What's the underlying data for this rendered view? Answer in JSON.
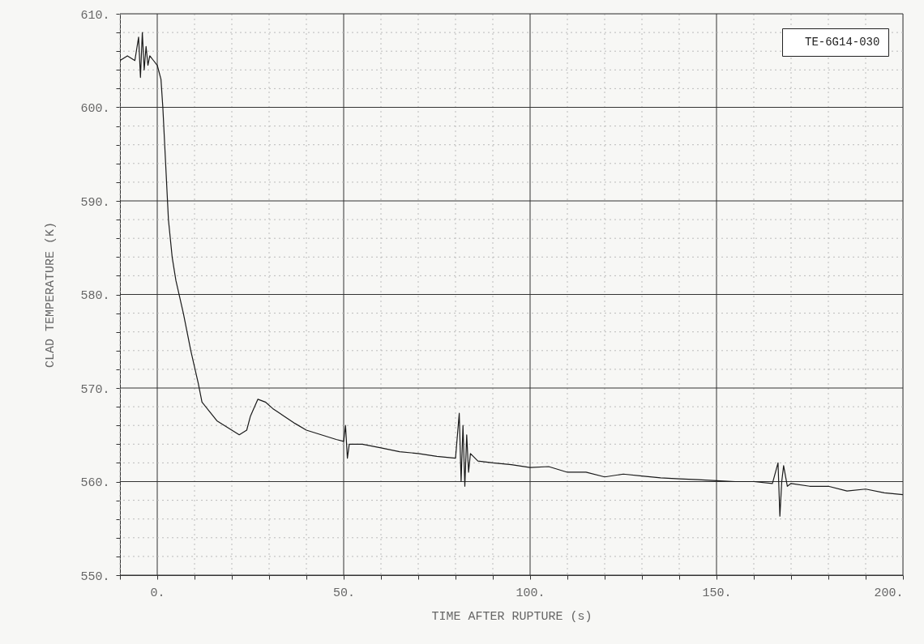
{
  "chart_data": {
    "type": "line",
    "xlabel": "TIME AFTER RUPTURE (s)",
    "ylabel": "CLAD TEMPERATURE (K)",
    "xlim": [
      -10,
      200
    ],
    "ylim": [
      550,
      610
    ],
    "xticks": [
      {
        "value": -10,
        "label": null
      },
      {
        "value": 0,
        "label": "0."
      },
      {
        "value": 10,
        "label": null
      },
      {
        "value": 20,
        "label": null
      },
      {
        "value": 30,
        "label": null
      },
      {
        "value": 40,
        "label": null
      },
      {
        "value": 50,
        "label": "50."
      },
      {
        "value": 60,
        "label": null
      },
      {
        "value": 70,
        "label": null
      },
      {
        "value": 80,
        "label": null
      },
      {
        "value": 90,
        "label": null
      },
      {
        "value": 100,
        "label": "100."
      },
      {
        "value": 110,
        "label": null
      },
      {
        "value": 120,
        "label": null
      },
      {
        "value": 130,
        "label": null
      },
      {
        "value": 140,
        "label": null
      },
      {
        "value": 150,
        "label": "150."
      },
      {
        "value": 160,
        "label": null
      },
      {
        "value": 170,
        "label": null
      },
      {
        "value": 180,
        "label": null
      },
      {
        "value": 190,
        "label": null
      },
      {
        "value": 200,
        "label": "200."
      }
    ],
    "yticks": [
      {
        "value": 550,
        "label": "550."
      },
      {
        "value": 552,
        "label": null
      },
      {
        "value": 554,
        "label": null
      },
      {
        "value": 556,
        "label": null
      },
      {
        "value": 558,
        "label": null
      },
      {
        "value": 560,
        "label": "560."
      },
      {
        "value": 562,
        "label": null
      },
      {
        "value": 564,
        "label": null
      },
      {
        "value": 566,
        "label": null
      },
      {
        "value": 568,
        "label": null
      },
      {
        "value": 570,
        "label": "570."
      },
      {
        "value": 572,
        "label": null
      },
      {
        "value": 574,
        "label": null
      },
      {
        "value": 576,
        "label": null
      },
      {
        "value": 578,
        "label": null
      },
      {
        "value": 580,
        "label": "580."
      },
      {
        "value": 582,
        "label": null
      },
      {
        "value": 584,
        "label": null
      },
      {
        "value": 586,
        "label": null
      },
      {
        "value": 588,
        "label": null
      },
      {
        "value": 590,
        "label": "590."
      },
      {
        "value": 592,
        "label": null
      },
      {
        "value": 594,
        "label": null
      },
      {
        "value": 596,
        "label": null
      },
      {
        "value": 598,
        "label": null
      },
      {
        "value": 600,
        "label": "600."
      },
      {
        "value": 602,
        "label": null
      },
      {
        "value": 604,
        "label": null
      },
      {
        "value": 606,
        "label": null
      },
      {
        "value": 608,
        "label": null
      },
      {
        "value": 610,
        "label": "610."
      }
    ],
    "grid": true,
    "legend": "top right",
    "marker": "none",
    "line_style": "solid",
    "series": [
      {
        "name": "TE-6G14-030",
        "color": "#1a1a1a",
        "x": [
          -10,
          -8,
          -6,
          -5,
          -4.5,
          -4,
          -3.5,
          -3,
          -2.5,
          -2,
          -1,
          0,
          1,
          1.5,
          2,
          3,
          4,
          5,
          7,
          9,
          11,
          12,
          14,
          16,
          18,
          20,
          22,
          24,
          25,
          27,
          29,
          31,
          34,
          37,
          40,
          44,
          48,
          50,
          50.5,
          51,
          51.5,
          55,
          60,
          65,
          70,
          75,
          80,
          81,
          81.5,
          82,
          82.5,
          83,
          83.5,
          84,
          86,
          90,
          95,
          100,
          105,
          110,
          115,
          120,
          125,
          130,
          135,
          140,
          145,
          150,
          155,
          160,
          165,
          166.5,
          167,
          167.5,
          168,
          169,
          170,
          175,
          180,
          185,
          190,
          195,
          200
        ],
        "values": [
          605,
          605.5,
          605,
          607.5,
          603.2,
          608,
          604,
          606.5,
          604.5,
          605.5,
          605,
          604.5,
          603,
          600,
          596,
          588,
          584,
          581.5,
          578,
          574,
          570.5,
          568.5,
          567.5,
          566.5,
          566,
          565.5,
          565,
          565.5,
          567,
          568.8,
          568.5,
          567.8,
          567,
          566.2,
          565.5,
          565,
          564.5,
          564.3,
          566,
          562.5,
          564,
          564,
          563.6,
          563.2,
          563,
          562.7,
          562.5,
          567.3,
          560,
          566,
          559.5,
          565,
          561,
          563,
          562.2,
          562,
          561.8,
          561.5,
          561.6,
          561,
          561,
          560.5,
          560.8,
          560.6,
          560.4,
          560.3,
          560.2,
          560.1,
          560,
          560,
          559.8,
          562,
          556.3,
          560,
          561.7,
          559.5,
          559.8,
          559.5,
          559.5,
          559,
          559.2,
          558.8,
          558.6
        ]
      }
    ]
  }
}
